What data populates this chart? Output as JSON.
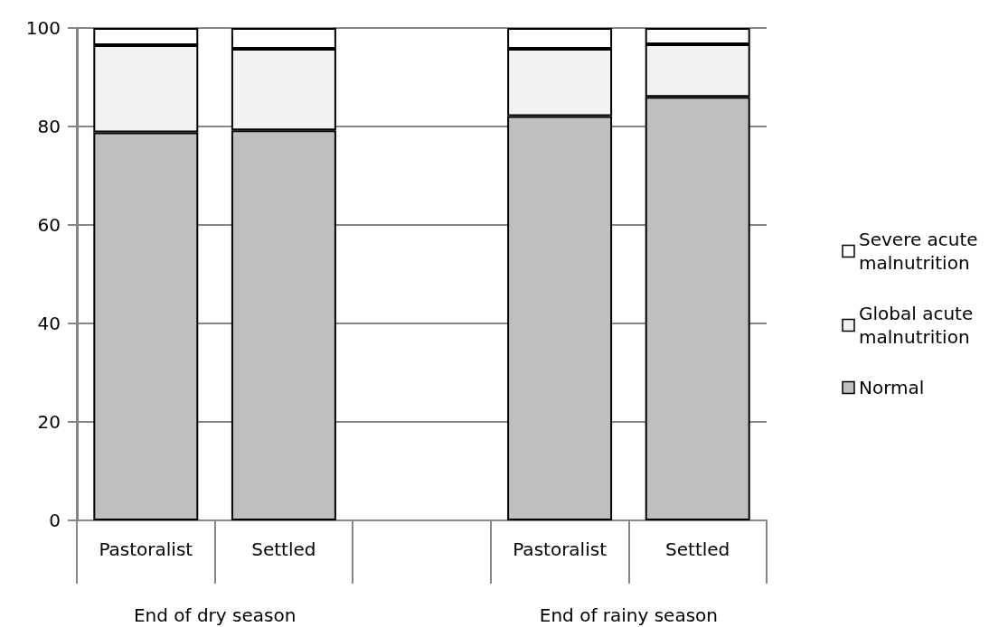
{
  "chart_data": {
    "type": "bar",
    "stacked": true,
    "categories": [
      "Pastoralist",
      "Settled",
      null,
      "Pastoralist",
      "Settled"
    ],
    "series": [
      {
        "name": "Normal",
        "color": "#bfbfbf",
        "values": [
          78.8,
          79.2,
          null,
          82.1,
          86.0
        ]
      },
      {
        "name": "Global acute malnutrition",
        "color": "#f2f2f2",
        "values": [
          17.7,
          16.6,
          null,
          13.7,
          10.7
        ]
      },
      {
        "name": "Severe acute malnutrition",
        "color": "#ffffff",
        "values": [
          3.5,
          4.2,
          null,
          4.2,
          3.3
        ]
      }
    ],
    "ylim": [
      0,
      100
    ],
    "yticks": [
      0,
      20,
      40,
      60,
      80,
      100
    ],
    "grid": "y",
    "legend": "right",
    "annotations": [
      "End of dry season",
      "End of rainy season"
    ]
  }
}
